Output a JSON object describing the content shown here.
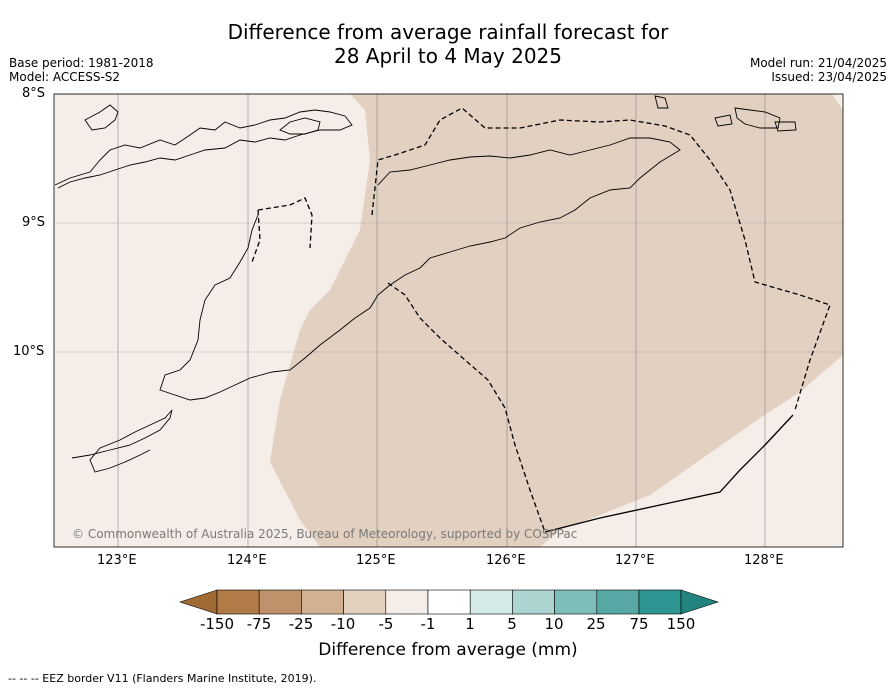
{
  "title": {
    "line1": "Difference from average rainfall forecast for",
    "line2": "28 April to 4 May 2025"
  },
  "meta_left": {
    "base_period": "Base period: 1981-2018",
    "model": "Model: ACCESS-S2"
  },
  "meta_right": {
    "model_run": "Model run: 21/04/2025",
    "issued": "Issued: 23/04/2025"
  },
  "map": {
    "lat_labels": [
      "8°S",
      "9°S",
      "10°S"
    ],
    "lon_labels": [
      "123°E",
      "124°E",
      "125°E",
      "126°E",
      "127°E",
      "128°E"
    ],
    "copyright": "© Commonwealth of Australia 2025, Bureau of Meteorology, supported by COSPPac",
    "colors": {
      "ocean_light": "#f5ede7",
      "anomaly_-10_-5": "#e2d0c0",
      "coastline": "#000000",
      "eez_border": "#000000"
    }
  },
  "colorbar": {
    "labels": [
      "-150",
      "-75",
      "-25",
      "-10",
      "-5",
      "-1",
      "1",
      "5",
      "10",
      "25",
      "75",
      "150"
    ],
    "colors": [
      "#a06a35",
      "#b07b47",
      "#bf926b",
      "#d2b193",
      "#e3d1c0",
      "#f5ede7",
      "#ffffff",
      "#d4eae8",
      "#acd4d1",
      "#7fbdb9",
      "#57a8a5",
      "#2d9692",
      "#23837f"
    ],
    "title": "Difference from average (mm)"
  },
  "footnote": "--  --  -- EEZ border V11 (Flanders Marine Institute, 2019)."
}
